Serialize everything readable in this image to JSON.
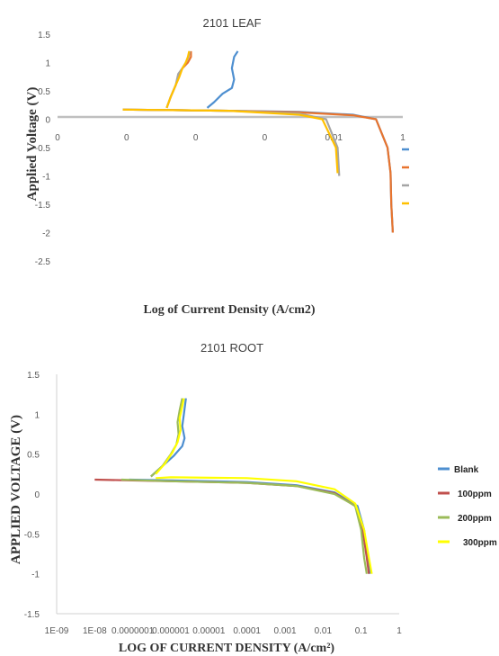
{
  "chart_data": [
    {
      "type": "line",
      "title": "2101 LEAF",
      "xlabel": "Log of Current Density (A/cm2)",
      "ylabel": "Applied Voltage (V)",
      "x_scale": "log",
      "xlim": [
        1e-09,
        1
      ],
      "ylim": [
        -2.5,
        1.5
      ],
      "x_tick_labels": [
        "0",
        "0",
        "0",
        "0",
        "0.01",
        "1"
      ],
      "y_tick_labels": [
        "1.5",
        "1",
        "0.5",
        "0",
        "-0.5",
        "-1",
        "-1.5",
        "-2",
        "-2.5"
      ],
      "legend_position": "right",
      "legend_entries": [
        "",
        "",
        "",
        ""
      ],
      "series": [
        {
          "color": "#4e8fd0",
          "points": [
            [
              5e-08,
              0.17
            ],
            [
              1e-06,
              0.16
            ],
            [
              3e-05,
              0.15
            ],
            [
              0.002,
              0.13
            ],
            [
              0.05,
              0.08
            ],
            [
              0.2,
              0
            ],
            [
              0.4,
              -0.5
            ],
            [
              0.48,
              -0.95
            ],
            [
              0.5,
              -1.5
            ],
            [
              0.55,
              -2.0
            ]
          ]
        },
        {
          "color": "#e8742e",
          "points": [
            [
              5e-08,
              0.17
            ],
            [
              1e-06,
              0.16
            ],
            [
              3e-05,
              0.15
            ],
            [
              0.002,
              0.12
            ],
            [
              0.05,
              0.07
            ],
            [
              0.2,
              0
            ],
            [
              0.4,
              -0.5
            ],
            [
              0.48,
              -0.95
            ],
            [
              0.5,
              -1.5
            ],
            [
              0.55,
              -2.0
            ]
          ]
        },
        {
          "color": "#a5a5a5",
          "points": [
            [
              5e-08,
              0.17
            ],
            [
              1e-06,
              0.16
            ],
            [
              3e-05,
              0.15
            ],
            [
              0.002,
              0.1
            ],
            [
              0.01,
              0
            ],
            [
              0.02,
              -0.5
            ],
            [
              0.022,
              -1.0
            ]
          ]
        },
        {
          "color": "#ffc000",
          "points": [
            [
              5e-08,
              0.17
            ],
            [
              1e-06,
              0.16
            ],
            [
              3e-05,
              0.15
            ],
            [
              0.002,
              0.08
            ],
            [
              0.008,
              0
            ],
            [
              0.018,
              -0.5
            ],
            [
              0.02,
              -0.95
            ]
          ]
        },
        {
          "color": "#4e8fd0",
          "points": [
            [
              8e-06,
              0.2
            ],
            [
              1.2e-05,
              0.3
            ],
            [
              2e-05,
              0.45
            ],
            [
              3.5e-05,
              0.55
            ],
            [
              4e-05,
              0.7
            ],
            [
              3.5e-05,
              0.9
            ],
            [
              4e-05,
              1.1
            ],
            [
              5e-05,
              1.2
            ]
          ]
        },
        {
          "color": "#e8742e",
          "points": [
            [
              7e-07,
              0.2
            ],
            [
              9e-07,
              0.4
            ],
            [
              1.2e-06,
              0.6
            ],
            [
              1.5e-06,
              0.8
            ],
            [
              1.8e-06,
              0.9
            ],
            [
              2.5e-06,
              1.0
            ],
            [
              3e-06,
              1.1
            ],
            [
              3e-06,
              1.2
            ]
          ]
        },
        {
          "color": "#a5a5a5",
          "points": [
            [
              7e-07,
              0.2
            ],
            [
              9e-07,
              0.4
            ],
            [
              1.2e-06,
              0.6
            ],
            [
              1.4e-06,
              0.8
            ],
            [
              1.8e-06,
              0.9
            ],
            [
              2.2e-06,
              1.0
            ],
            [
              2.6e-06,
              1.1
            ],
            [
              2.8e-06,
              1.2
            ]
          ]
        },
        {
          "color": "#ffc000",
          "points": [
            [
              7e-07,
              0.2
            ],
            [
              9e-07,
              0.4
            ],
            [
              1.2e-06,
              0.6
            ],
            [
              1.5e-06,
              0.75
            ],
            [
              1.8e-06,
              0.9
            ],
            [
              2.2e-06,
              1.0
            ],
            [
              2.5e-06,
              1.1
            ],
            [
              2.7e-06,
              1.2
            ]
          ]
        }
      ]
    },
    {
      "type": "line",
      "title": "2101 ROOT",
      "xlabel": "LOG OF CURRENT DENSITY (A/cm²)",
      "ylabel": "APPLIED VOLTAGE (V)",
      "x_scale": "log",
      "xlim": [
        1e-09,
        1
      ],
      "ylim": [
        -1.5,
        1.5
      ],
      "x_tick_labels": [
        "1E-09",
        "1E-08",
        "0.0000001",
        "0.000001",
        "0.00001",
        "0.0001",
        "0.001",
        "0.01",
        "0.1",
        "1"
      ],
      "y_tick_labels": [
        "1.5",
        "1",
        "0.5",
        "0",
        "-0.5",
        "-1",
        "-1.5"
      ],
      "legend_position": "right",
      "legend_entries": [
        "Blank",
        "100ppm",
        "200ppm",
        "300ppm"
      ],
      "series": [
        {
          "name": "Blank",
          "color": "#4e8fd0",
          "points": [
            [
              8e-08,
              0.18
            ],
            [
              1e-06,
              0.17
            ],
            [
              0.0001,
              0.15
            ],
            [
              0.002,
              0.11
            ],
            [
              0.02,
              0.02
            ],
            [
              0.08,
              -0.15
            ],
            [
              0.12,
              -0.45
            ],
            [
              0.15,
              -0.8
            ],
            [
              0.17,
              -1.0
            ]
          ]
        },
        {
          "name": "100ppm",
          "color": "#c0504d",
          "points": [
            [
              1e-08,
              0.18
            ],
            [
              1e-07,
              0.17
            ],
            [
              1e-06,
              0.16
            ],
            [
              0.0001,
              0.14
            ],
            [
              0.002,
              0.1
            ],
            [
              0.02,
              0.01
            ],
            [
              0.07,
              -0.15
            ],
            [
              0.11,
              -0.45
            ],
            [
              0.14,
              -0.8
            ],
            [
              0.16,
              -1.0
            ]
          ]
        },
        {
          "name": "200ppm",
          "color": "#9bbb59",
          "points": [
            [
              5e-08,
              0.18
            ],
            [
              1e-06,
              0.16
            ],
            [
              0.0001,
              0.14
            ],
            [
              0.002,
              0.1
            ],
            [
              0.02,
              0.0
            ],
            [
              0.07,
              -0.15
            ],
            [
              0.1,
              -0.45
            ],
            [
              0.12,
              -0.8
            ],
            [
              0.14,
              -1.0
            ]
          ]
        },
        {
          "name": "300ppm",
          "color": "#ffff00",
          "points": [
            [
              4e-07,
              0.2
            ],
            [
              1e-06,
              0.21
            ],
            [
              0.0001,
              0.2
            ],
            [
              0.002,
              0.16
            ],
            [
              0.02,
              0.06
            ],
            [
              0.07,
              -0.12
            ],
            [
              0.12,
              -0.45
            ],
            [
              0.16,
              -0.8
            ],
            [
              0.19,
              -1.0
            ]
          ]
        },
        {
          "color": "#4e8fd0",
          "points": [
            [
              3e-07,
              0.22
            ],
            [
              6e-07,
              0.35
            ],
            [
              1.2e-06,
              0.48
            ],
            [
              2e-06,
              0.6
            ],
            [
              2.3e-06,
              0.7
            ],
            [
              2e-06,
              0.85
            ],
            [
              2.2e-06,
              1.0
            ],
            [
              2.5e-06,
              1.2
            ]
          ]
        },
        {
          "color": "#9bbb59",
          "points": [
            [
              3e-07,
              0.22
            ],
            [
              6e-07,
              0.35
            ],
            [
              1e-06,
              0.5
            ],
            [
              1.4e-06,
              0.62
            ],
            [
              1.6e-06,
              0.75
            ],
            [
              1.5e-06,
              0.9
            ],
            [
              1.7e-06,
              1.05
            ],
            [
              2e-06,
              1.2
            ]
          ]
        },
        {
          "color": "#ffff00",
          "points": [
            [
              4e-07,
              0.25
            ],
            [
              7e-07,
              0.38
            ],
            [
              1.1e-06,
              0.52
            ],
            [
              1.5e-06,
              0.65
            ],
            [
              1.8e-06,
              0.8
            ],
            [
              1.7e-06,
              0.95
            ],
            [
              2e-06,
              1.1
            ],
            [
              2.2e-06,
              1.2
            ]
          ]
        }
      ]
    }
  ]
}
